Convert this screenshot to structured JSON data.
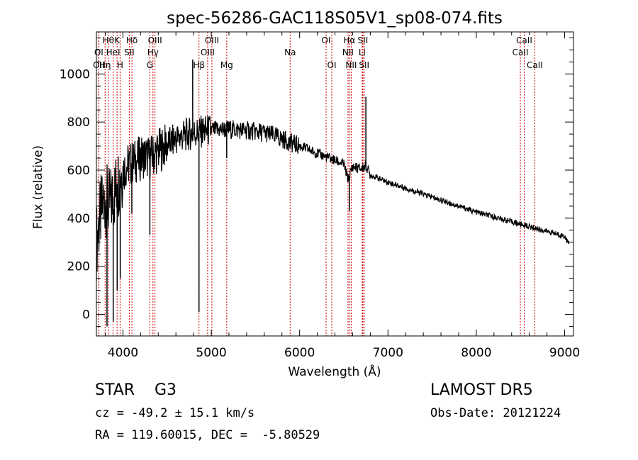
{
  "chart_data": {
    "type": "line",
    "title": "spec-56286-GAC118S05V1_sp08-074.fits",
    "xlabel": "Wavelength (Å)",
    "ylabel": "Flux (relative)",
    "xlim": [
      3700,
      9100
    ],
    "ylim": [
      -90,
      1175
    ],
    "xticks": [
      4000,
      5000,
      6000,
      7000,
      8000,
      9000
    ],
    "yticks": [
      0,
      200,
      400,
      600,
      800,
      1000
    ],
    "grid": false,
    "legend": "none",
    "line_color": "#000000",
    "marker_color": "#cc0000",
    "series": [
      {
        "x": [
          3700,
          3750,
          3800,
          3850,
          3900,
          3950,
          4000,
          4050,
          4100,
          4150,
          4200,
          4250,
          4300,
          4350,
          4400,
          4500,
          4600,
          4700,
          4800,
          4900,
          5000,
          5100,
          5200,
          5300,
          5400,
          5500,
          5600,
          5700,
          5800,
          5900,
          6000,
          6100,
          6200,
          6300,
          6400,
          6500,
          6550,
          6600,
          6650,
          6700,
          6750,
          6800,
          6900,
          7000,
          7200,
          7400,
          7600,
          7800,
          8000,
          8200,
          8400,
          8600,
          8800,
          9000,
          9050
        ],
        "y": [
          300,
          420,
          480,
          450,
          500,
          560,
          600,
          620,
          630,
          640,
          650,
          660,
          650,
          665,
          680,
          705,
          730,
          745,
          755,
          760,
          765,
          768,
          770,
          768,
          765,
          760,
          755,
          745,
          730,
          715,
          700,
          685,
          670,
          655,
          640,
          625,
          560,
          615,
          610,
          605,
          620,
          580,
          565,
          550,
          525,
          500,
          475,
          450,
          425,
          405,
          385,
          365,
          345,
          325,
          290
        ],
        "features": [
          {
            "x": 3820,
            "y": -50
          },
          {
            "x": 3890,
            "y": -30
          },
          {
            "x": 3935,
            "y": 100
          },
          {
            "x": 3970,
            "y": 150
          },
          {
            "x": 4101,
            "y": 420
          },
          {
            "x": 4305,
            "y": 330
          },
          {
            "x": 4861,
            "y": 10
          },
          {
            "x": 4790,
            "y": 1060
          },
          {
            "x": 5175,
            "y": 650
          },
          {
            "x": 5890,
            "y": 690
          },
          {
            "x": 6563,
            "y": 430
          },
          {
            "x": 6750,
            "y": 905
          }
        ]
      }
    ],
    "annotations": [
      {
        "x": 3727,
        "row": 3,
        "label": "OII"
      },
      {
        "x": 3727,
        "row": 2,
        "label": "OI"
      },
      {
        "x": 3798,
        "row": 3,
        "label": "Hη"
      },
      {
        "x": 3835,
        "row": 1,
        "label": "Hθ"
      },
      {
        "x": 3889,
        "row": 2,
        "label": "HeI"
      },
      {
        "x": 3934,
        "row": 1,
        "label": "K"
      },
      {
        "x": 3968,
        "row": 3,
        "label": "H"
      },
      {
        "x": 4072,
        "row": 2,
        "label": "SII"
      },
      {
        "x": 4102,
        "row": 1,
        "label": "Hδ"
      },
      {
        "x": 4305,
        "row": 3,
        "label": "G"
      },
      {
        "x": 4340,
        "row": 2,
        "label": "Hγ"
      },
      {
        "x": 4363,
        "row": 1,
        "label": "OIII"
      },
      {
        "x": 4861,
        "row": 3,
        "label": "Hβ"
      },
      {
        "x": 4959,
        "row": 2,
        "label": "OIII"
      },
      {
        "x": 5007,
        "row": 1,
        "label": "OIII"
      },
      {
        "x": 5175,
        "row": 3,
        "label": "Mg"
      },
      {
        "x": 5893,
        "row": 2,
        "label": "Na"
      },
      {
        "x": 6300,
        "row": 1,
        "label": "OI"
      },
      {
        "x": 6364,
        "row": 3,
        "label": "OI"
      },
      {
        "x": 6548,
        "row": 2,
        "label": "NII"
      },
      {
        "x": 6563,
        "row": 1,
        "label": "Hα"
      },
      {
        "x": 6584,
        "row": 3,
        "label": "NII"
      },
      {
        "x": 6708,
        "row": 2,
        "label": "Li"
      },
      {
        "x": 6716,
        "row": 1,
        "label": "SII"
      },
      {
        "x": 6731,
        "row": 3,
        "label": "SII"
      },
      {
        "x": 8498,
        "row": 2,
        "label": "CaII"
      },
      {
        "x": 8542,
        "row": 1,
        "label": "CaII"
      },
      {
        "x": 8662,
        "row": 3,
        "label": "CaII"
      }
    ]
  },
  "info": {
    "classification": "STAR    G3",
    "survey": "LAMOST DR5",
    "redshift": "cz = -49.2 ± 15.1 km/s",
    "obs_date": "Obs-Date: 20121224",
    "coordinates": "RA = 119.60015, DEC =  -5.80529"
  }
}
